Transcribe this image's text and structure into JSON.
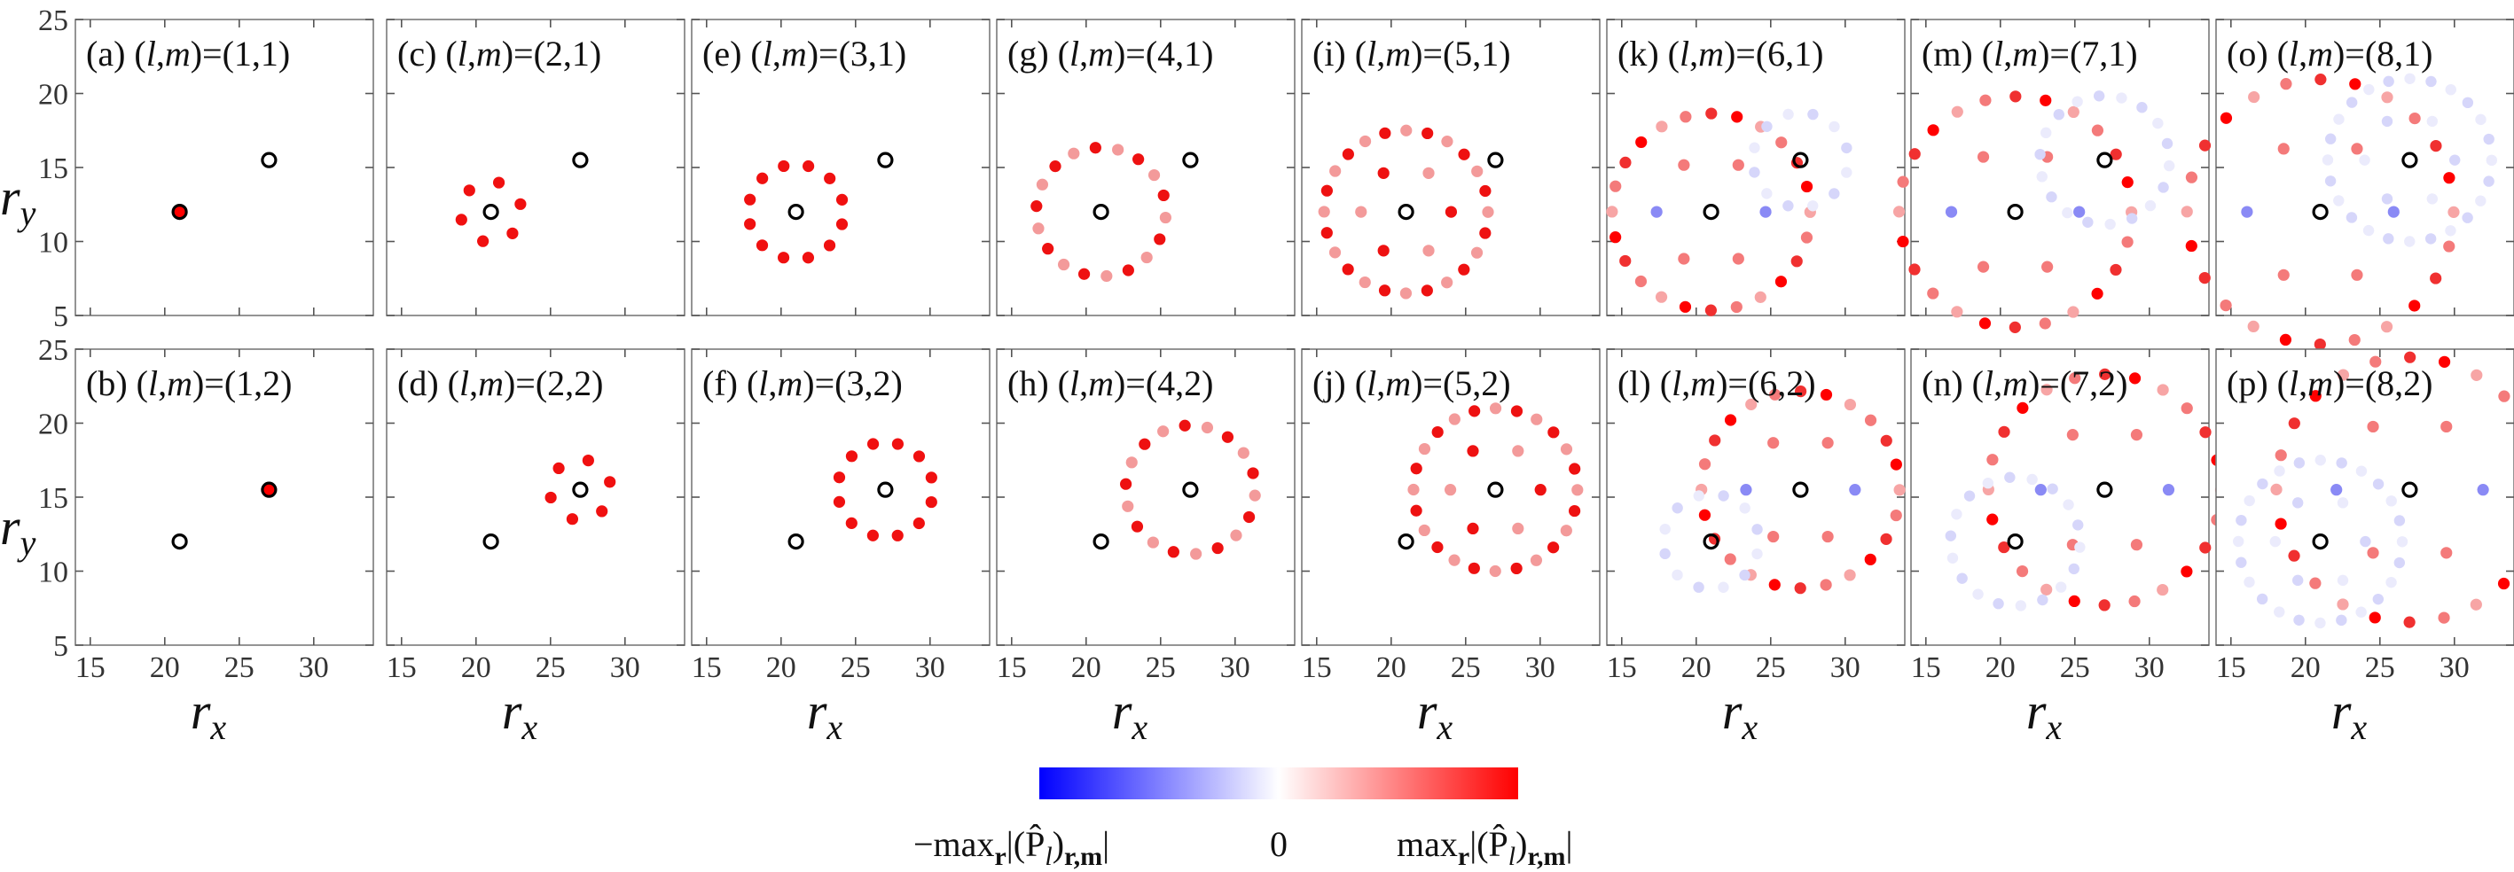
{
  "chart_data": {
    "type": "scatter",
    "description_axis": {
      "xlabel": "r",
      "xlabel_sub": "x",
      "ylabel": "r",
      "ylabel_sub": "y",
      "xlim": [
        14,
        34
      ],
      "ylim": [
        5,
        25
      ],
      "xticks": [
        15,
        20,
        25,
        30
      ],
      "yticks": [
        5,
        10,
        15,
        20,
        25
      ]
    },
    "centers": [
      {
        "name": "site-A",
        "x": 21,
        "y": 12
      },
      {
        "name": "site-B",
        "x": 27,
        "y": 15.5
      }
    ],
    "panels": [
      {
        "label": "(a)",
        "l": "1",
        "m": "1",
        "title_prefix": "(a) (",
        "title_mid": ",",
        "title_suffix": ")=(1,1)",
        "center": 0,
        "extent": 0,
        "pattern": "red"
      },
      {
        "label": "(c)",
        "l": "2",
        "m": "1",
        "title_prefix": "(c) (",
        "title_mid": ",",
        "title_suffix": ")=(2,1)",
        "center": 0,
        "extent": 1,
        "pattern": "red"
      },
      {
        "label": "(e)",
        "l": "3",
        "m": "1",
        "title_prefix": "(e) (",
        "title_mid": ",",
        "title_suffix": ")=(3,1)",
        "center": 0,
        "extent": 2,
        "pattern": "red"
      },
      {
        "label": "(g)",
        "l": "4",
        "m": "1",
        "title_prefix": "(g) (",
        "title_mid": ",",
        "title_suffix": ")=(4,1)",
        "center": 0,
        "extent": 3,
        "pattern": "mixed"
      },
      {
        "label": "(i)",
        "l": "5",
        "m": "1",
        "title_prefix": "(i) (",
        "title_mid": ",",
        "title_suffix": ")=(5,1)",
        "center": 0,
        "extent": 4,
        "pattern": "mixed"
      },
      {
        "label": "(k)",
        "l": "6",
        "m": "1",
        "title_prefix": "(k) (",
        "title_mid": ",",
        "title_suffix": ")=(6,1)",
        "center": 0,
        "extent": 5,
        "pattern": "spread"
      },
      {
        "label": "(m)",
        "l": "7",
        "m": "1",
        "title_prefix": "(m) (",
        "title_mid": ",",
        "title_suffix": ")=(7,1)",
        "center": 0,
        "extent": 6,
        "pattern": "spread"
      },
      {
        "label": "(o)",
        "l": "8",
        "m": "1",
        "title_prefix": "(o) (",
        "title_mid": ",",
        "title_suffix": ")=(8,1)",
        "center": 0,
        "extent": 7,
        "pattern": "spread"
      },
      {
        "label": "(b)",
        "l": "1",
        "m": "2",
        "title_prefix": "(b) (",
        "title_mid": ",",
        "title_suffix": ")=(1,2)",
        "center": 1,
        "extent": 0,
        "pattern": "red"
      },
      {
        "label": "(d)",
        "l": "2",
        "m": "2",
        "title_prefix": "(d) (",
        "title_mid": ",",
        "title_suffix": ")=(2,2)",
        "center": 1,
        "extent": 1,
        "pattern": "red"
      },
      {
        "label": "(f)",
        "l": "3",
        "m": "2",
        "title_prefix": "(f) (",
        "title_mid": ",",
        "title_suffix": ")=(3,2)",
        "center": 1,
        "extent": 2,
        "pattern": "red"
      },
      {
        "label": "(h)",
        "l": "4",
        "m": "2",
        "title_prefix": "(h) (",
        "title_mid": ",",
        "title_suffix": ")=(4,2)",
        "center": 1,
        "extent": 3,
        "pattern": "mixed"
      },
      {
        "label": "(j)",
        "l": "5",
        "m": "2",
        "title_prefix": "(j) (",
        "title_mid": ",",
        "title_suffix": ")=(5,2)",
        "center": 1,
        "extent": 4,
        "pattern": "mixed"
      },
      {
        "label": "(l)",
        "l": "6",
        "m": "2",
        "title_prefix": "(l) (",
        "title_mid": ",",
        "title_suffix": ")=(6,2)",
        "center": 1,
        "extent": 5,
        "pattern": "spread"
      },
      {
        "label": "(n)",
        "l": "7",
        "m": "2",
        "title_prefix": "(n) (",
        "title_mid": ",",
        "title_suffix": ")=(7,2)",
        "center": 1,
        "extent": 6,
        "pattern": "spread"
      },
      {
        "label": "(p)",
        "l": "8",
        "m": "2",
        "title_prefix": "(p) (",
        "title_mid": ",",
        "title_suffix": ")=(8,2)",
        "center": 1,
        "extent": 7,
        "pattern": "spread"
      }
    ],
    "colorbar": {
      "min_label": "−max",
      "mid_label": "0",
      "max_label": "max",
      "label_subscript": "r",
      "label_expr": "|(P̂",
      "label_expr_sub": "l",
      "label_expr_tail": ")",
      "label_expr_tail_sub": "r,m",
      "label_close": "|",
      "colors": [
        "#0000ff",
        "#ffffff",
        "#ff0000"
      ]
    },
    "colors": {
      "positive": "#ff0000",
      "negative": "#0000ff",
      "center_marker": "#000000"
    }
  }
}
